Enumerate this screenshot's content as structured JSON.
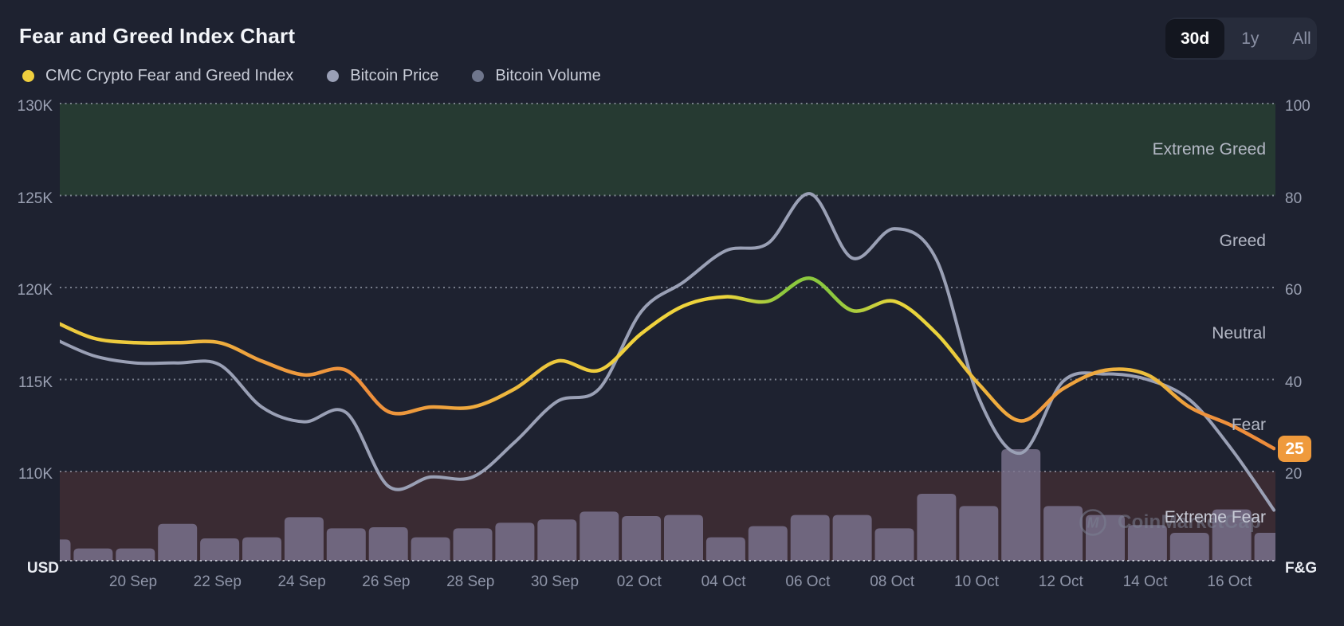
{
  "header": {
    "title": "Fear and Greed Index Chart",
    "range_buttons": [
      {
        "label": "30d",
        "active": true
      },
      {
        "label": "1y",
        "active": false
      },
      {
        "label": "All",
        "active": false
      }
    ]
  },
  "legend": {
    "items": [
      {
        "label": "CMC Crypto Fear and Greed Index",
        "color": "#f0cf3e"
      },
      {
        "label": "Bitcoin Price",
        "color": "#9aa0b6"
      },
      {
        "label": "Bitcoin Volume",
        "color": "#6f768c"
      }
    ]
  },
  "axes": {
    "left_unit": "USD",
    "right_unit": "F&G"
  },
  "current_badge": {
    "value": "25",
    "color": "#ef9a3c"
  },
  "watermark": {
    "label": "CoinMarketCap"
  },
  "chart_data": {
    "type": "line+bar",
    "title": "Fear and Greed Index Chart",
    "dates": [
      "18 Sep",
      "19 Sep",
      "20 Sep",
      "21 Sep",
      "22 Sep",
      "23 Sep",
      "24 Sep",
      "25 Sep",
      "26 Sep",
      "27 Sep",
      "28 Sep",
      "29 Sep",
      "30 Sep",
      "01 Oct",
      "02 Oct",
      "03 Oct",
      "04 Oct",
      "05 Oct",
      "06 Oct",
      "07 Oct",
      "08 Oct",
      "09 Oct",
      "10 Oct",
      "11 Oct",
      "12 Oct",
      "13 Oct",
      "14 Oct",
      "15 Oct",
      "16 Oct",
      "17 Oct"
    ],
    "x_tick_labels": [
      "20 Sep",
      "22 Sep",
      "24 Sep",
      "26 Sep",
      "28 Sep",
      "30 Sep",
      "02 Oct",
      "04 Oct",
      "06 Oct",
      "08 Oct",
      "10 Oct",
      "12 Oct",
      "14 Oct",
      "16 Oct"
    ],
    "left_axis": {
      "unit": "USD",
      "tick_labels": [
        "130K",
        "125K",
        "120K",
        "115K",
        "110K"
      ],
      "tick_values_k": [
        130,
        125,
        120,
        115,
        110
      ]
    },
    "right_axis": {
      "unit": "F&G",
      "tick_labels": [
        "100",
        "80",
        "60",
        "40",
        "20"
      ],
      "tick_values": [
        100,
        80,
        60,
        40,
        20
      ],
      "range": [
        0,
        100
      ]
    },
    "zones": [
      {
        "label": "Extreme Greed",
        "from": 80,
        "to": 100,
        "band_color": "#263a32"
      },
      {
        "label": "Greed",
        "from": 60,
        "to": 80,
        "band_color": null
      },
      {
        "label": "Neutral",
        "from": 40,
        "to": 60,
        "band_color": null
      },
      {
        "label": "Fear",
        "from": 20,
        "to": 40,
        "band_color": null
      },
      {
        "label": "Extreme Fear",
        "from": 0,
        "to": 20,
        "band_color": "#3a2b33"
      }
    ],
    "series": [
      {
        "name": "CMC Crypto Fear and Greed Index",
        "type": "line",
        "axis": "right",
        "values": [
          53,
          49,
          48,
          48,
          48,
          44,
          41,
          42,
          33,
          34,
          34,
          38,
          44,
          42,
          50,
          56,
          58,
          57,
          62,
          55,
          57,
          50,
          39,
          31,
          38,
          42,
          41,
          34,
          30,
          25
        ],
        "gradient_stops": [
          {
            "offset": 0.0,
            "color": "#ecca3e"
          },
          {
            "offset": 0.08,
            "color": "#eecb3d"
          },
          {
            "offset": 0.17,
            "color": "#ef9f3e"
          },
          {
            "offset": 0.26,
            "color": "#ee8f3c"
          },
          {
            "offset": 0.34,
            "color": "#efa93e"
          },
          {
            "offset": 0.41,
            "color": "#ecc73d"
          },
          {
            "offset": 0.48,
            "color": "#f0d23d"
          },
          {
            "offset": 0.55,
            "color": "#eed53c"
          },
          {
            "offset": 0.6,
            "color": "#8cc83e"
          },
          {
            "offset": 0.64,
            "color": "#8cc83e"
          },
          {
            "offset": 0.69,
            "color": "#e6d43c"
          },
          {
            "offset": 0.73,
            "color": "#ead23c"
          },
          {
            "offset": 0.77,
            "color": "#efae3e"
          },
          {
            "offset": 0.81,
            "color": "#ef9a3e"
          },
          {
            "offset": 0.86,
            "color": "#eeab3e"
          },
          {
            "offset": 0.895,
            "color": "#ecc13d"
          },
          {
            "offset": 0.94,
            "color": "#ee923c"
          },
          {
            "offset": 1.0,
            "color": "#ed8b3b"
          }
        ]
      },
      {
        "name": "Bitcoin Price",
        "type": "line",
        "axis": "left",
        "unit": "USD",
        "color": "#9aa0b5",
        "values_usd_k": [
          117.3,
          116.3,
          115.9,
          115.9,
          115.8,
          113.5,
          112.7,
          113.2,
          109.2,
          109.7,
          109.7,
          111.6,
          113.8,
          114.5,
          118.7,
          120.3,
          122.0,
          122.4,
          125.1,
          121.6,
          123.2,
          121.5,
          114.0,
          111.0,
          114.9,
          115.3,
          115.0,
          113.9,
          111.2,
          107.9
        ]
      },
      {
        "name": "Bitcoin Volume",
        "type": "bar",
        "axis": "none",
        "color": "#7d7691",
        "relative_values": [
          19,
          11,
          11,
          33,
          20,
          21,
          39,
          29,
          30,
          21,
          29,
          34,
          37,
          44,
          40,
          41,
          21,
          31,
          41,
          41,
          29,
          60,
          49,
          100,
          49,
          41,
          32,
          25,
          46,
          25
        ]
      }
    ],
    "current_value": 25,
    "grid": "dotted-horizontal",
    "legend_position": "top-left"
  }
}
